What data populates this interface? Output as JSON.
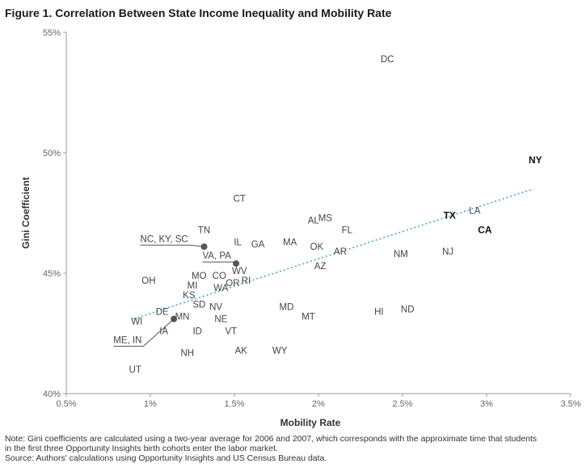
{
  "title": "Figure 1. Correlation Between State Income Inequality and Mobility Rate",
  "notes": [
    "Note: Gini coefficients are calculated using a two-year average for 2006 and 2007, which corresponds with the approximate time that students",
    "in the first three Opportunity Insights birth cohorts enter the labor market.",
    "Source: Authors' calculations using Opportunity Insights and US Census Bureau data."
  ],
  "colors": {
    "trend": "#4aa3df",
    "axis": "#999999",
    "point": "#555555",
    "text": "#444444"
  },
  "chart_data": {
    "type": "scatter",
    "xlabel": "Mobility Rate",
    "ylabel": "Gini Coefficient",
    "xlim": [
      0.5,
      3.5
    ],
    "ylim": [
      40,
      55
    ],
    "x_ticks": [
      {
        "v": 0.5,
        "label": "0.5%"
      },
      {
        "v": 1.0,
        "label": "1%"
      },
      {
        "v": 1.5,
        "label": "1.5%"
      },
      {
        "v": 2.0,
        "label": "2%"
      },
      {
        "v": 2.5,
        "label": "2.5%"
      },
      {
        "v": 3.0,
        "label": "3%"
      },
      {
        "v": 3.5,
        "label": "3.5%"
      }
    ],
    "y_ticks": [
      {
        "v": 40,
        "label": "40%"
      },
      {
        "v": 45,
        "label": "45%"
      },
      {
        "v": 50,
        "label": "50%"
      },
      {
        "v": 55,
        "label": "55%"
      }
    ],
    "grid": false,
    "trendline": {
      "x1": 0.9,
      "y1": 43.1,
      "x2": 3.28,
      "y2": 48.5
    },
    "points": [
      {
        "label": "DC",
        "x": 2.41,
        "y": 53.9
      },
      {
        "label": "NY",
        "x": 3.29,
        "y": 49.7,
        "bold": true
      },
      {
        "label": "CT",
        "x": 1.53,
        "y": 48.1
      },
      {
        "label": "LA",
        "x": 2.93,
        "y": 47.6
      },
      {
        "label": "TX",
        "x": 2.78,
        "y": 47.4,
        "bold": true
      },
      {
        "label": "AL",
        "x": 1.97,
        "y": 47.2
      },
      {
        "label": "MS",
        "x": 2.04,
        "y": 47.3
      },
      {
        "label": "CA",
        "x": 2.99,
        "y": 46.8,
        "bold": true
      },
      {
        "label": "TN",
        "x": 1.32,
        "y": 46.8
      },
      {
        "label": "FL",
        "x": 2.17,
        "y": 46.8
      },
      {
        "label": "IL",
        "x": 1.52,
        "y": 46.3
      },
      {
        "label": "GA",
        "x": 1.64,
        "y": 46.2
      },
      {
        "label": "MA",
        "x": 1.83,
        "y": 46.3
      },
      {
        "label": "OK",
        "x": 1.99,
        "y": 46.1
      },
      {
        "label": "AR",
        "x": 2.13,
        "y": 45.9
      },
      {
        "label": "NJ",
        "x": 2.77,
        "y": 45.9
      },
      {
        "label": "NM",
        "x": 2.49,
        "y": 45.8
      },
      {
        "label": "AZ",
        "x": 2.01,
        "y": 45.3
      },
      {
        "label": "WV",
        "x": 1.53,
        "y": 45.1
      },
      {
        "label": "OH",
        "x": 0.99,
        "y": 44.7
      },
      {
        "label": "MO",
        "x": 1.29,
        "y": 44.9
      },
      {
        "label": "CO",
        "x": 1.41,
        "y": 44.9
      },
      {
        "label": "RI",
        "x": 1.57,
        "y": 44.7
      },
      {
        "label": "OR",
        "x": 1.49,
        "y": 44.6
      },
      {
        "label": "MI",
        "x": 1.25,
        "y": 44.5
      },
      {
        "label": "WA",
        "x": 1.42,
        "y": 44.4
      },
      {
        "label": "KS",
        "x": 1.23,
        "y": 44.1
      },
      {
        "label": "SD",
        "x": 1.29,
        "y": 43.7
      },
      {
        "label": "NV",
        "x": 1.39,
        "y": 43.6
      },
      {
        "label": "MD",
        "x": 1.81,
        "y": 43.6
      },
      {
        "label": "ND",
        "x": 2.53,
        "y": 43.5
      },
      {
        "label": "HI",
        "x": 2.36,
        "y": 43.4
      },
      {
        "label": "DE",
        "x": 1.07,
        "y": 43.4
      },
      {
        "label": "MT",
        "x": 1.94,
        "y": 43.2
      },
      {
        "label": "MN",
        "x": 1.19,
        "y": 43.2
      },
      {
        "label": "WI",
        "x": 0.92,
        "y": 43.0
      },
      {
        "label": "NE",
        "x": 1.42,
        "y": 43.1
      },
      {
        "label": "IA",
        "x": 1.08,
        "y": 42.6
      },
      {
        "label": "ID",
        "x": 1.28,
        "y": 42.6
      },
      {
        "label": "VT",
        "x": 1.48,
        "y": 42.6
      },
      {
        "label": "WY",
        "x": 1.77,
        "y": 41.8
      },
      {
        "label": "AK",
        "x": 1.54,
        "y": 41.8
      },
      {
        "label": "NH",
        "x": 1.22,
        "y": 41.7
      },
      {
        "label": "UT",
        "x": 0.91,
        "y": 41.0
      }
    ],
    "group_points": [
      {
        "label": "NC, KY, SC",
        "x": 1.32,
        "y": 46.1,
        "label_x": 0.94,
        "label_y": 46.3
      },
      {
        "label": "VA, PA",
        "x": 1.51,
        "y": 45.4,
        "label_x": 1.31,
        "label_y": 45.6
      },
      {
        "label": "ME, IN",
        "x": 1.14,
        "y": 43.1,
        "label_x": 0.78,
        "label_y": 42.1
      }
    ]
  }
}
